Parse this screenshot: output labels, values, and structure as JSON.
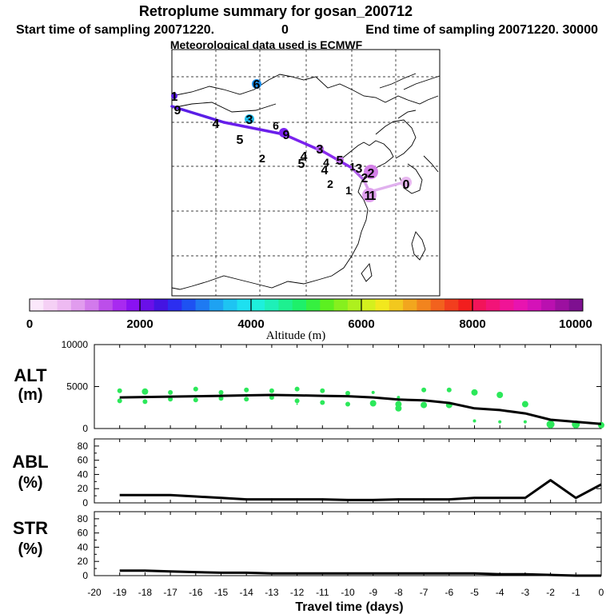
{
  "header": {
    "title": "Retroplume summary for gosan_200712",
    "start_label": "Start time of sampling 20071220.",
    "start_hour": "0",
    "end_label": "End time of sampling 20071220. 30000",
    "met_label": "Meteorological data used is ECMWF"
  },
  "colorbar": {
    "tick_labels": [
      "0",
      "2000",
      "4000",
      "6000",
      "8000",
      "10000"
    ],
    "label": "Altitude (m)"
  },
  "panels": {
    "alt_label": "ALT",
    "alt_unit": "(m)",
    "abl_label": "ABL",
    "abl_unit": "(%)",
    "str_label": "STR",
    "str_unit": "(%)",
    "xlabel": "Travel time (days)"
  },
  "map_markers": [
    "0",
    "1",
    "1",
    "1",
    "2",
    "2",
    "2",
    "3",
    "4",
    "4",
    "1",
    "5",
    "4",
    "5",
    "2",
    "3",
    "9",
    "6",
    "5",
    "3",
    "4",
    "9",
    "1",
    "6"
  ],
  "chart_data": [
    {
      "type": "line",
      "title": "ALT",
      "ylabel": "(m)",
      "xlabel": "Travel time (days)",
      "xlim": [
        -20,
        0
      ],
      "ylim": [
        0,
        10000
      ],
      "yticks": [
        "0",
        "5000",
        "10000"
      ],
      "xticks": [
        "-20",
        "-19",
        "-18",
        "-17",
        "-16",
        "-15",
        "-14",
        "-13",
        "-12",
        "-11",
        "-10",
        "-9",
        "-8",
        "-7",
        "-6",
        "-5",
        "-4",
        "-3",
        "-2",
        "-1",
        "0"
      ],
      "series": [
        {
          "name": "mean altitude",
          "x": [
            -19,
            -18,
            -17,
            -16,
            -15,
            -14,
            -13,
            -12,
            -11,
            -10,
            -9,
            -8,
            -7,
            -6,
            -5,
            -4,
            -3,
            -2,
            -1,
            0
          ],
          "values": [
            3700,
            3750,
            3800,
            3850,
            3900,
            3950,
            4000,
            3950,
            3900,
            3850,
            3700,
            3450,
            3350,
            3050,
            2400,
            2200,
            1800,
            1050,
            800,
            550
          ]
        },
        {
          "name": "cluster altitudes",
          "type": "scatter",
          "x": [
            -19,
            -19,
            -18,
            -18,
            -17,
            -17,
            -16,
            -16,
            -15,
            -15,
            -14,
            -14,
            -13,
            -13,
            -12,
            -12,
            -12,
            -11,
            -11,
            -10,
            -10,
            -9,
            -9,
            -8,
            -8,
            -8,
            -7,
            -7,
            -6,
            -6,
            -5,
            -5,
            -4,
            -4,
            -3,
            -3,
            -2,
            -1,
            0
          ],
          "values": [
            4500,
            3300,
            4400,
            3200,
            4300,
            3500,
            4700,
            3400,
            4300,
            3600,
            4600,
            3500,
            4500,
            3700,
            4700,
            3300,
            2900,
            4500,
            3100,
            4200,
            2900,
            3000,
            4300,
            3700,
            2400,
            2900,
            4600,
            2800,
            4600,
            2800,
            4300,
            900,
            4000,
            800,
            2900,
            800,
            500,
            500,
            400
          ],
          "sizes": [
            3,
            3,
            4,
            3,
            3,
            3,
            3,
            3,
            3,
            3,
            3,
            3,
            3,
            3,
            3,
            3,
            1,
            3,
            3,
            3,
            3,
            4,
            2,
            2,
            4,
            4,
            3,
            4,
            3,
            4,
            4,
            2,
            4,
            2,
            4,
            2,
            5,
            5,
            4
          ]
        }
      ]
    },
    {
      "type": "line",
      "title": "ABL",
      "ylabel": "(%)",
      "xlim": [
        -20,
        0
      ],
      "ylim": [
        0,
        90
      ],
      "yticks": [
        "0",
        "20",
        "40",
        "60",
        "80"
      ],
      "series": [
        {
          "name": "ABL fraction",
          "x": [
            -19,
            -18,
            -17,
            -16,
            -15,
            -14,
            -13,
            -12,
            -11,
            -10,
            -9,
            -8,
            -7,
            -6,
            -5,
            -4,
            -3,
            -2,
            -1,
            0
          ],
          "values": [
            11,
            11,
            11,
            9,
            7,
            5,
            5,
            5,
            5,
            4,
            4,
            5,
            5,
            5,
            7,
            7,
            7,
            32,
            7,
            26
          ]
        }
      ]
    },
    {
      "type": "line",
      "title": "STR",
      "ylabel": "(%)",
      "xlim": [
        -20,
        0
      ],
      "ylim": [
        0,
        90
      ],
      "yticks": [
        "0",
        "20",
        "40",
        "60",
        "80"
      ],
      "series": [
        {
          "name": "STR fraction",
          "x": [
            -19,
            -18,
            -17,
            -16,
            -15,
            -14,
            -13,
            -12,
            -11,
            -10,
            -9,
            -8,
            -7,
            -6,
            -5,
            -4,
            -3,
            -2,
            -1,
            0
          ],
          "values": [
            7,
            7,
            6,
            5,
            4,
            4,
            3,
            3,
            3,
            3,
            3,
            3,
            3,
            3,
            3,
            2,
            2,
            1,
            0,
            0
          ]
        }
      ]
    }
  ]
}
